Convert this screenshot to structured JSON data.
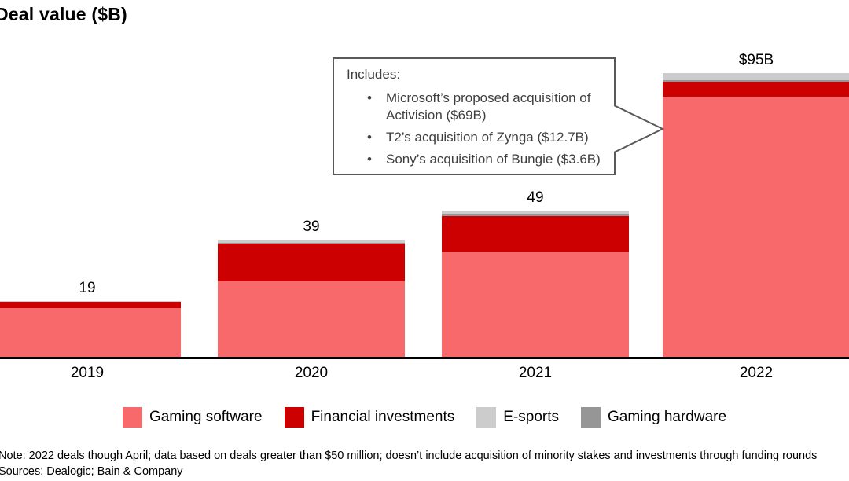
{
  "title": "Deal value ($B)",
  "chart_data": {
    "type": "bar",
    "stacked": true,
    "title": "Deal value ($B)",
    "ylabel": "Deal value ($B)",
    "xlabel": "",
    "ylim": [
      0,
      100
    ],
    "grid": false,
    "legend_position": "bottom",
    "categories": [
      "2019",
      "2020",
      "2021",
      "2022"
    ],
    "series": [
      {
        "name": "Gaming software",
        "color": "#F7696A",
        "values": [
          16.6,
          25.4,
          35.5,
          87.1
        ]
      },
      {
        "name": "Financial investments",
        "color": "#CC0000",
        "values": [
          2.1,
          12.6,
          11.7,
          5.0
        ]
      },
      {
        "name": "Gaming hardware",
        "color": "#969696",
        "values": [
          0,
          0.3,
          0.8,
          0.5
        ]
      },
      {
        "name": "E-sports",
        "color": "#CCCCCC",
        "values": [
          0.3,
          1.0,
          1.0,
          2.4
        ]
      }
    ],
    "totals": [
      19,
      39,
      49,
      95
    ],
    "total_labels": [
      "19",
      "39",
      "49",
      "$95B"
    ]
  },
  "legend": [
    {
      "label": "Gaming software",
      "color": "#F7696A"
    },
    {
      "label": "Financial investments",
      "color": "#CC0000"
    },
    {
      "label": "E-sports",
      "color": "#CCCCCC"
    },
    {
      "label": "Gaming hardware",
      "color": "#969696"
    }
  ],
  "callout": {
    "heading": "Includes:",
    "bullet_char": "•",
    "bullets": [
      "Microsoft’s proposed acquisition of Activision ($69B)",
      "T2’s acquisition of Zynga ($12.7B)",
      "Sony’s acquisition of Bungie ($3.6B)"
    ],
    "border_color": "#595959"
  },
  "footer": {
    "note": "Note: 2022 deals though April; data based on deals greater than $50 million; doesn’t include acquisition of minority stakes and investments through funding rounds",
    "sources": "Sources: Dealogic; Bain & Company"
  },
  "colors": {
    "axis": "#000000",
    "callout_text": "#3f3f3f",
    "background": "#ffffff"
  }
}
